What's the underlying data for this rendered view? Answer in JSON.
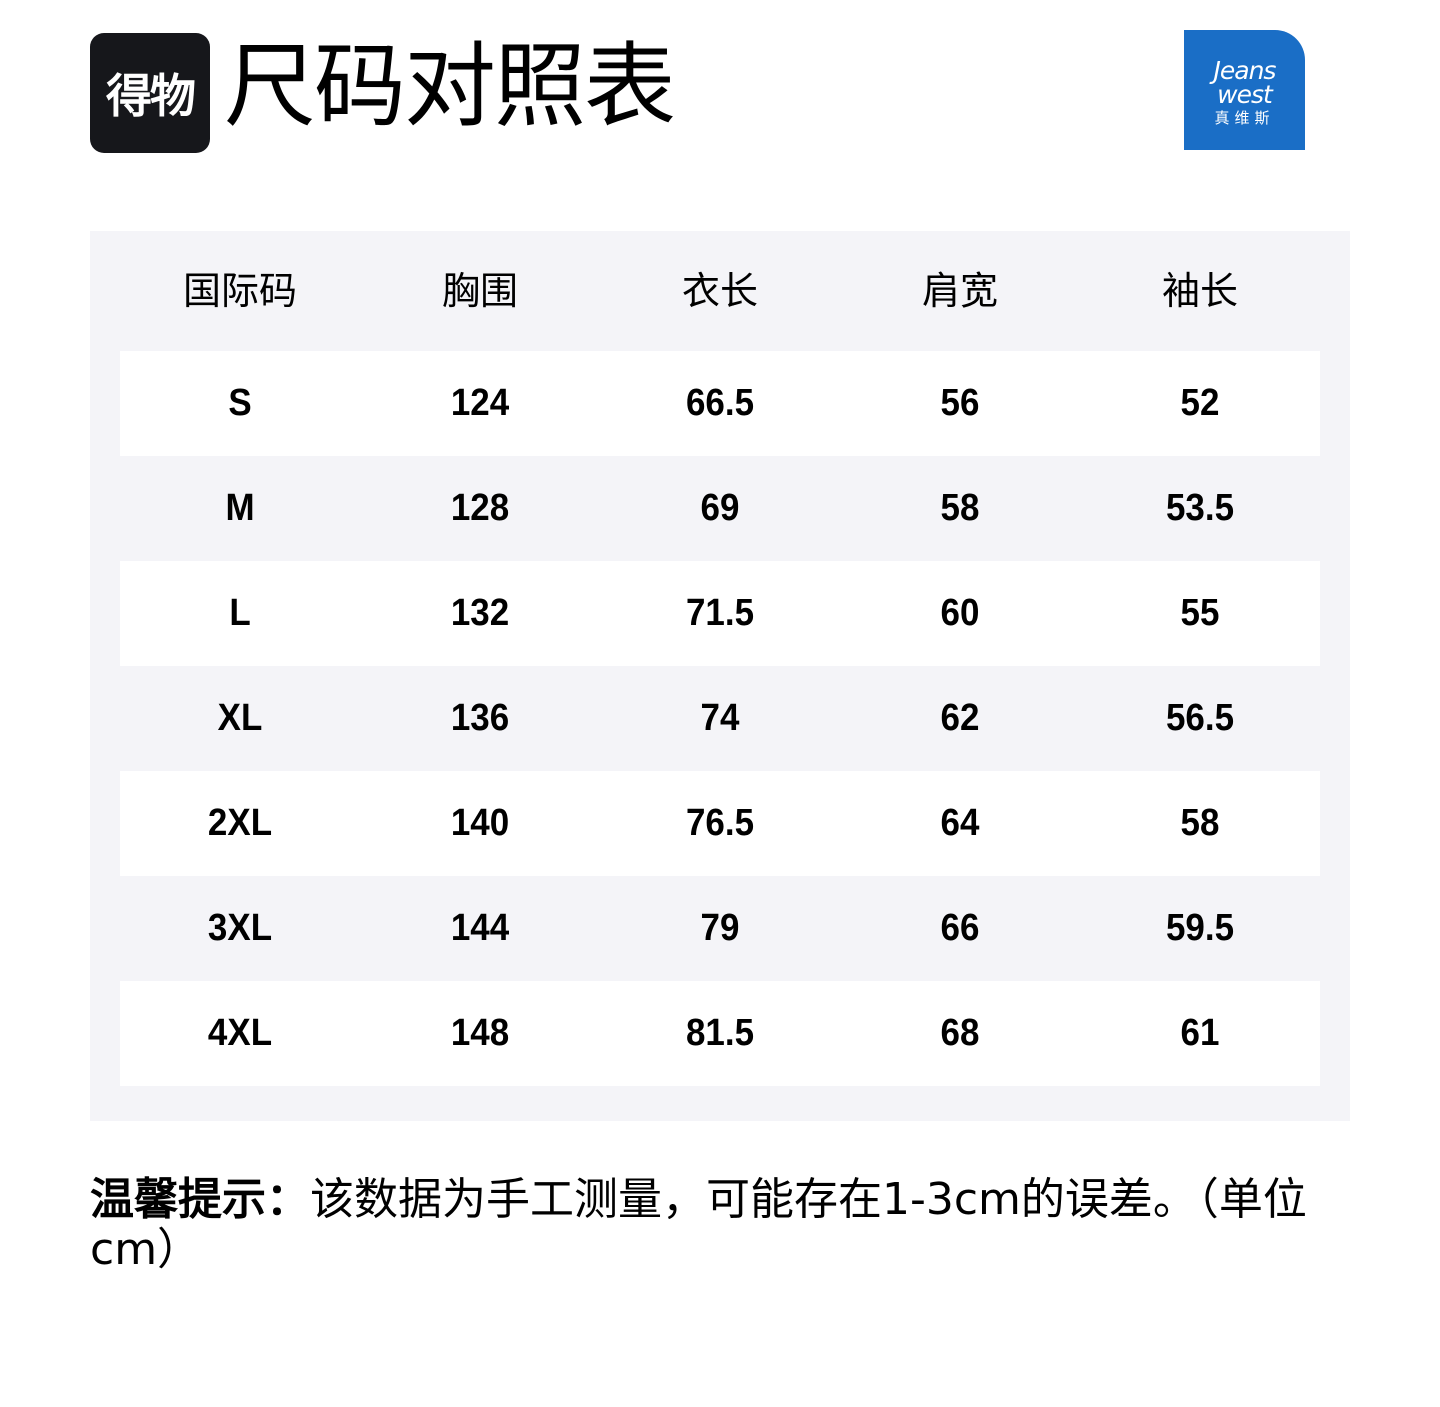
{
  "header": {
    "platform_logo_text": "得物",
    "title": "尺码对照表",
    "brand_logo": {
      "line1": "Jeans",
      "line2": "west",
      "line3": "真维斯",
      "color": "#1a6ec6"
    }
  },
  "table": {
    "columns": [
      "国际码",
      "胸围",
      "衣长",
      "肩宽",
      "袖长"
    ],
    "rows": [
      [
        "S",
        "124",
        "66.5",
        "56",
        "52"
      ],
      [
        "M",
        "128",
        "69",
        "58",
        "53.5"
      ],
      [
        "L",
        "132",
        "71.5",
        "60",
        "55"
      ],
      [
        "XL",
        "136",
        "74",
        "62",
        "56.5"
      ],
      [
        "2XL",
        "140",
        "76.5",
        "64",
        "58"
      ],
      [
        "3XL",
        "144",
        "79",
        "66",
        "59.5"
      ],
      [
        "4XL",
        "148",
        "81.5",
        "68",
        "61"
      ]
    ]
  },
  "note": {
    "label": "温馨提示：",
    "text": "该数据为手工测量，可能存在1-3cm的误差。（单位cm）"
  }
}
